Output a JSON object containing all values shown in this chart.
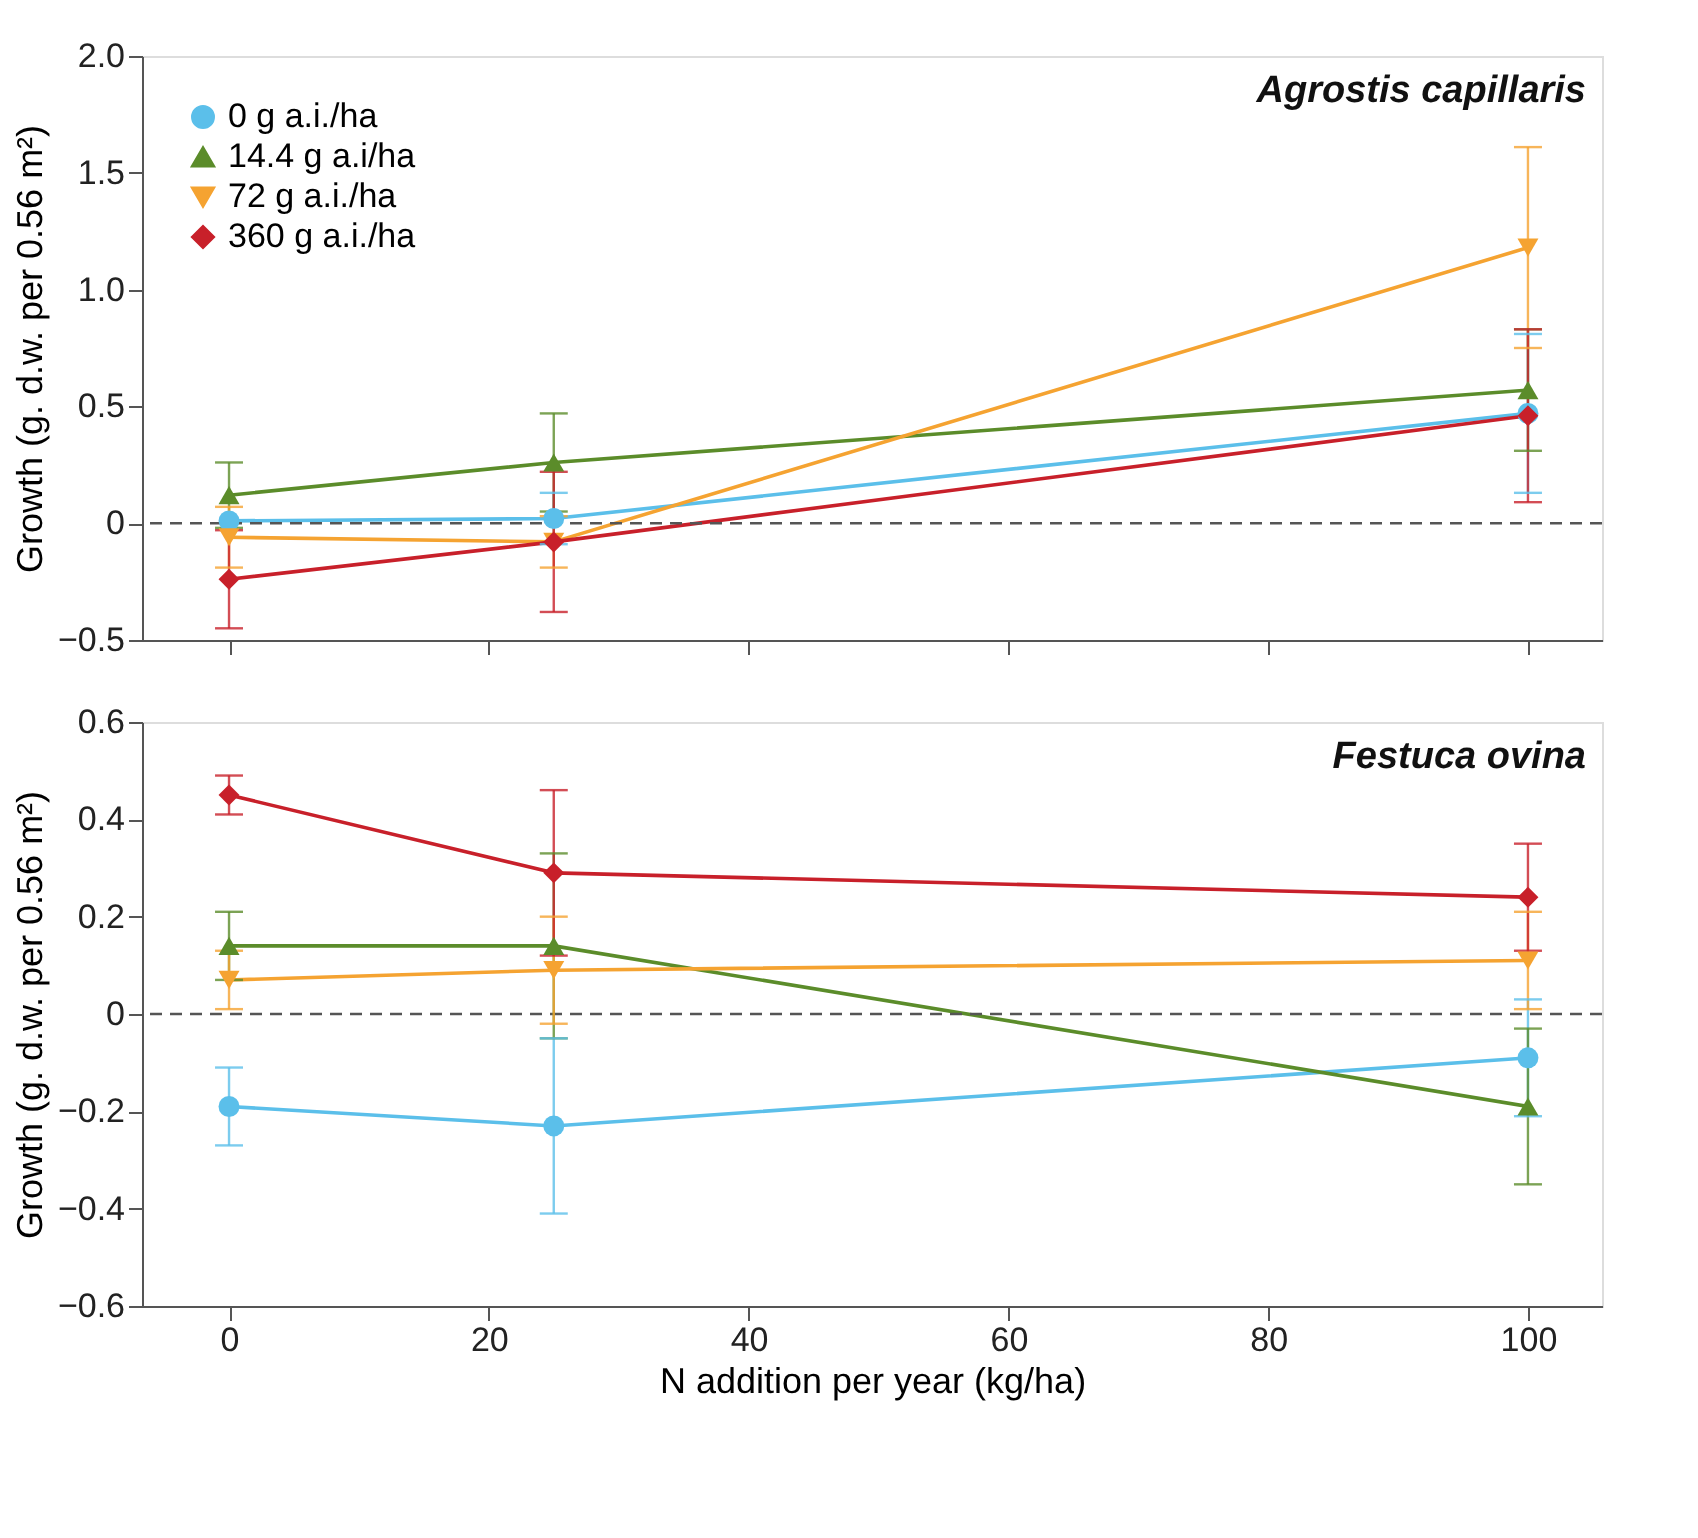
{
  "chart_data": [
    {
      "type": "line",
      "title": "Agrostis capillaris",
      "ylabel": "Growth (g. d.w. per 0.56 m²)",
      "x": [
        0,
        25,
        100
      ],
      "xlim": [
        -6.7,
        105.7
      ],
      "xticks": [
        0,
        20,
        40,
        60,
        80,
        100
      ],
      "ylim": [
        -0.5,
        2.0
      ],
      "yticks": [
        -0.5,
        0,
        0.5,
        {
          "value": 1,
          "label": "1.0"
        },
        1.5,
        {
          "value": 2,
          "label": "2.0"
        }
      ],
      "tick_labels": "y",
      "grid": false,
      "legend": "top left",
      "line_style": "solid",
      "ref_lines": [
        {
          "axis": "y",
          "value": 0,
          "color": "#555555",
          "line_style": "dashed"
        }
      ],
      "series": [
        {
          "name": "0 g a.i./ha",
          "color": "#5bbfea",
          "marker": "circle",
          "values": [
            0.01,
            0.02,
            0.47
          ],
          "errors": [
            null,
            0.11,
            0.34
          ]
        },
        {
          "name": "14.4 g a.i/ha",
          "color": "#5b8c2a",
          "marker": "triangle",
          "values": [
            0.12,
            0.26,
            0.57
          ],
          "errors": [
            0.14,
            0.21,
            0.26
          ]
        },
        {
          "name": "72 g a.i./ha",
          "color": "#f5a331",
          "marker": "triangle-down",
          "values": [
            -0.06,
            -0.08,
            1.18
          ],
          "errors": [
            0.13,
            0.11,
            0.43
          ]
        },
        {
          "name": "360 g a.i./ha",
          "color": "#c8202a",
          "marker": "diamond",
          "values": [
            -0.24,
            -0.08,
            0.46
          ],
          "errors": [
            0.21,
            0.3,
            0.37
          ]
        }
      ]
    },
    {
      "type": "line",
      "title": "Festuca ovina",
      "xlabel": "N addition per year (kg/ha)",
      "ylabel": "Growth (g. d.w. per 0.56 m²)",
      "x": [
        0,
        25,
        100
      ],
      "xlim": [
        -6.7,
        105.7
      ],
      "xticks": [
        0,
        20,
        40,
        60,
        80,
        100
      ],
      "ylim": [
        -0.6,
        0.6
      ],
      "yticks": [
        -0.6,
        -0.4,
        -0.2,
        0,
        0.2,
        0.4,
        0.6
      ],
      "grid": false,
      "legend": false,
      "line_style": "solid",
      "ref_lines": [
        {
          "axis": "y",
          "value": 0,
          "color": "#555555",
          "line_style": "dashed"
        }
      ],
      "series": [
        {
          "color": "#5bbfea",
          "marker": "circle",
          "values": [
            -0.19,
            -0.23,
            -0.09
          ],
          "errors": [
            0.08,
            0.18,
            0.12
          ]
        },
        {
          "color": "#5b8c2a",
          "marker": "triangle",
          "values": [
            0.14,
            0.14,
            -0.19
          ],
          "errors": [
            0.07,
            0.19,
            0.16
          ]
        },
        {
          "color": "#f5a331",
          "marker": "triangle-down",
          "values": [
            0.07,
            0.09,
            0.11
          ],
          "errors": [
            0.06,
            0.11,
            0.1
          ]
        },
        {
          "color": "#c8202a",
          "marker": "diamond",
          "values": [
            0.45,
            0.29,
            0.24
          ],
          "errors": [
            0.04,
            0.17,
            0.11
          ]
        }
      ]
    }
  ]
}
